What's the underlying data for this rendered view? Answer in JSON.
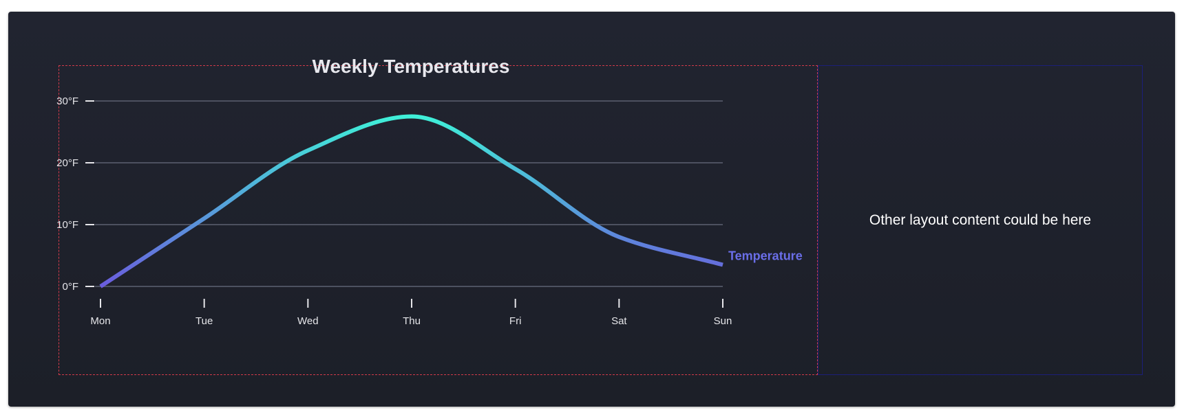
{
  "side_panel": {
    "text": "Other layout content could be here"
  },
  "chart_data": {
    "type": "line",
    "title": "Weekly Temperatures",
    "categories": [
      "Mon",
      "Tue",
      "Wed",
      "Thu",
      "Fri",
      "Sat",
      "Sun"
    ],
    "series": [
      {
        "name": "Temperature",
        "values": [
          0,
          11,
          22,
          27.5,
          19,
          8,
          3.5
        ]
      }
    ],
    "ylim": [
      0,
      30
    ],
    "yticks": [
      0,
      10,
      20,
      30
    ],
    "ytick_labels": [
      "0°F",
      "10°F",
      "20°F",
      "30°F"
    ],
    "grid": true,
    "legend": "end-of-line",
    "colors": {
      "line_start": "#6a5cdd",
      "line_peak": "#3ff0d8",
      "line_end": "#5b82e8",
      "label": "#6a6ee8"
    }
  }
}
